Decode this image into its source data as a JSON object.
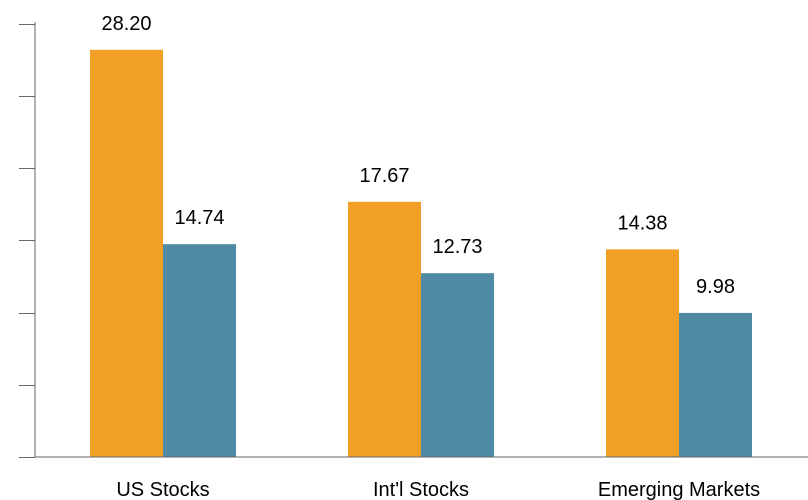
{
  "chart_data": {
    "type": "bar",
    "title": "",
    "xlabel": "",
    "ylabel": "",
    "categories": [
      "US Stocks",
      "Int'l Stocks",
      "Emerging Markets"
    ],
    "series": [
      {
        "values": [
          28.2,
          17.67,
          14.38
        ],
        "labels": [
          "28.20",
          "17.67",
          "14.38"
        ],
        "color": "#F29F26"
      },
      {
        "values": [
          14.74,
          12.73,
          9.98
        ],
        "labels": [
          "14.74",
          "12.73",
          "9.98"
        ],
        "color": "#508BA6"
      }
    ],
    "ylim": [
      0,
      30
    ],
    "y_tick_values": [
      0,
      5,
      10,
      15,
      20,
      25,
      30
    ],
    "y_tick_labels_shown": false,
    "grid": false,
    "legend": "none"
  }
}
